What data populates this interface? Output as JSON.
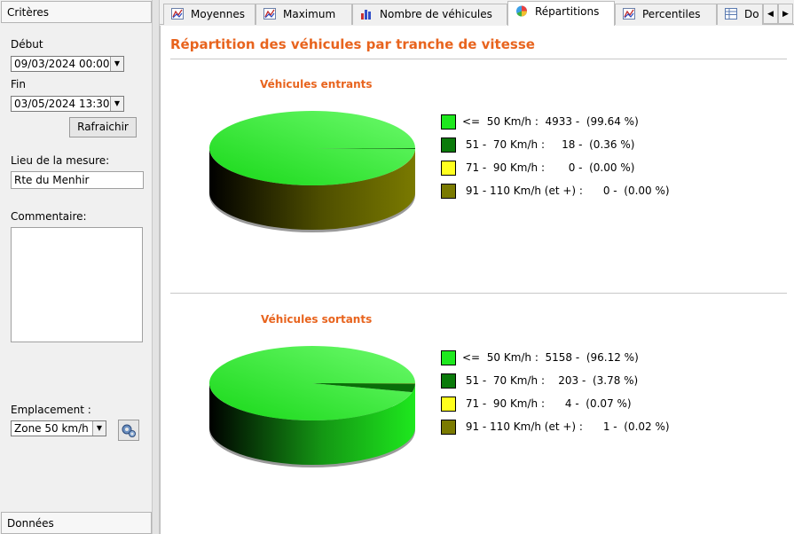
{
  "left_panel": {
    "header": "Critères",
    "debut_label": "Début",
    "debut_value": "09/03/2024 00:00",
    "fin_label": "Fin",
    "fin_value": "03/05/2024 13:30",
    "refresh_label": "Rafraichir",
    "lieu_label": "Lieu de la mesure:",
    "lieu_value": "Rte du Menhir",
    "commentaire_label": "Commentaire:",
    "emplacement_label": "Emplacement :",
    "emplacement_value": "Zone 50 km/h",
    "footer": "Données"
  },
  "tabs": [
    {
      "label": "Moyennes",
      "icon": "line-chart-icon"
    },
    {
      "label": "Maximum",
      "icon": "line-chart-icon"
    },
    {
      "label": "Nombre de véhicules",
      "icon": "bar-chart-icon"
    },
    {
      "label": "Répartitions",
      "icon": "pie-chart-icon",
      "active": true
    },
    {
      "label": "Percentiles",
      "icon": "line-chart-icon"
    },
    {
      "label": "Do",
      "icon": "table-icon"
    }
  ],
  "main": {
    "title": "Répartition des véhicules par tranche de vitesse"
  },
  "colors": {
    "range1": "#1ee81e",
    "range2": "#0a7a0a",
    "range3": "#ffff1e",
    "range4": "#7a7a00",
    "accent": "#e8641e"
  },
  "chart_data": [
    {
      "type": "pie",
      "title": "Véhicules entrants",
      "categories": [
        "<= 50 Km/h",
        "51 - 70 Km/h",
        "71 - 90 Km/h",
        "91 - 110 Km/h (et +)"
      ],
      "counts": [
        4933,
        18,
        0,
        0
      ],
      "values": [
        99.64,
        0.36,
        0.0,
        0.0
      ],
      "legend": [
        "<=  50 Km/h :  4933 -  (99.64 %)",
        " 51 -  70 Km/h :     18 -  (0.36 %)",
        " 71 -  90 Km/h :       0 -  (0.00 %)",
        " 91 - 110 Km/h (et +) :      0 -  (0.00 %)"
      ]
    },
    {
      "type": "pie",
      "title": "Véhicules sortants",
      "categories": [
        "<= 50 Km/h",
        "51 - 70 Km/h",
        "71 - 90 Km/h",
        "91 - 110 Km/h (et +)"
      ],
      "counts": [
        5158,
        203,
        4,
        1
      ],
      "values": [
        96.12,
        3.78,
        0.07,
        0.02
      ],
      "legend": [
        "<=  50 Km/h :  5158 -  (96.12 %)",
        " 51 -  70 Km/h :    203 -  (3.78 %)",
        " 71 -  90 Km/h :      4 -  (0.07 %)",
        " 91 - 110 Km/h (et +) :      1 -  (0.02 %)"
      ]
    }
  ]
}
